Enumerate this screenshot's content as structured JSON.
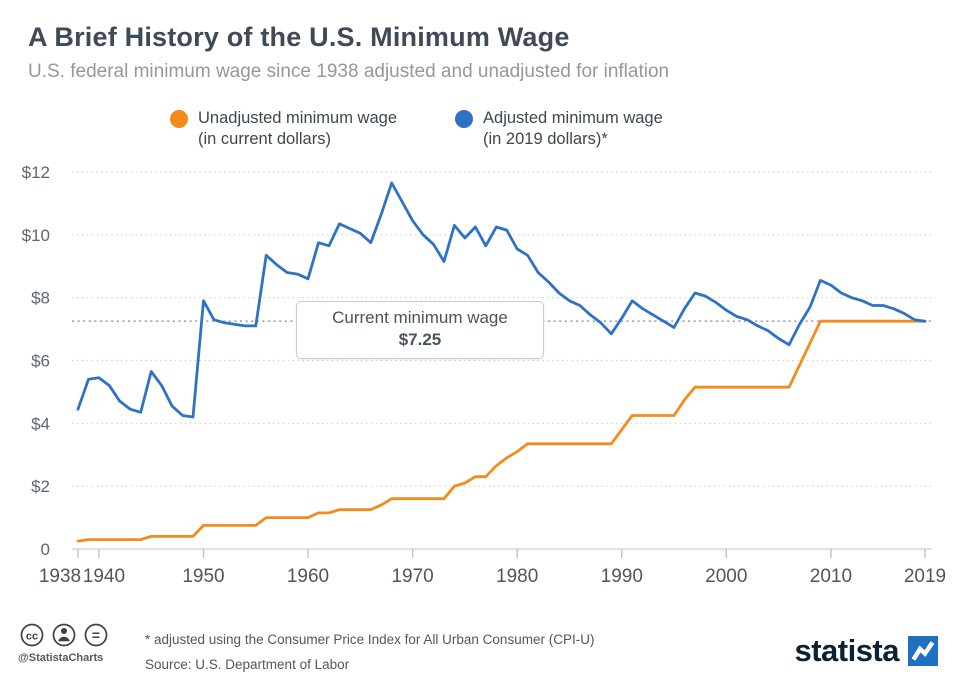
{
  "header": {
    "title": "A Brief History of the U.S. Minimum Wage",
    "subtitle": "U.S. federal minimum wage since 1938 adjusted and unadjusted for inflation"
  },
  "legend": [
    {
      "line1": "Unadjusted minimum wage",
      "line2": "(in current dollars)",
      "color": "#f28c1c"
    },
    {
      "line1": "Adjusted minimum wage",
      "line2": "(in 2019 dollars)*",
      "color": "#2e72c6"
    }
  ],
  "annotation": {
    "line1": "Current minimum wage",
    "line2": "$7.25",
    "value": 7.25
  },
  "chart_data": {
    "type": "line",
    "title": "A Brief History of the U.S. Minimum Wage",
    "xlabel": "",
    "ylabel": "",
    "ylim": [
      0,
      12
    ],
    "grid": "horizontal-dotted",
    "legend_position": "top",
    "reference_line": {
      "value": 7.25,
      "style": "dotted",
      "color": "#9aa1a7"
    },
    "yticks": [
      {
        "v": 0,
        "label": "0"
      },
      {
        "v": 2,
        "label": "$2"
      },
      {
        "v": 4,
        "label": "$4"
      },
      {
        "v": 6,
        "label": "$6"
      },
      {
        "v": 8,
        "label": "$8"
      },
      {
        "v": 10,
        "label": "$10"
      },
      {
        "v": 12,
        "label": "$12"
      }
    ],
    "xticks": [
      1938,
      1940,
      1950,
      1960,
      1970,
      1980,
      1990,
      2000,
      2010,
      2019
    ],
    "x": [
      1938,
      1939,
      1940,
      1941,
      1942,
      1943,
      1944,
      1945,
      1946,
      1947,
      1948,
      1949,
      1950,
      1951,
      1952,
      1953,
      1954,
      1955,
      1956,
      1957,
      1958,
      1959,
      1960,
      1961,
      1962,
      1963,
      1964,
      1965,
      1966,
      1967,
      1968,
      1969,
      1970,
      1971,
      1972,
      1973,
      1974,
      1975,
      1976,
      1977,
      1978,
      1979,
      1980,
      1981,
      1982,
      1983,
      1984,
      1985,
      1986,
      1987,
      1988,
      1989,
      1990,
      1991,
      1992,
      1993,
      1994,
      1995,
      1996,
      1997,
      1998,
      1999,
      2000,
      2001,
      2002,
      2003,
      2004,
      2005,
      2006,
      2007,
      2008,
      2009,
      2010,
      2011,
      2012,
      2013,
      2014,
      2015,
      2016,
      2017,
      2018,
      2019
    ],
    "series": [
      {
        "name": "Unadjusted minimum wage (in current dollars)",
        "color": "#f28c1c",
        "values": [
          0.25,
          0.3,
          0.3,
          0.3,
          0.3,
          0.3,
          0.3,
          0.4,
          0.4,
          0.4,
          0.4,
          0.4,
          0.75,
          0.75,
          0.75,
          0.75,
          0.75,
          0.75,
          1.0,
          1.0,
          1.0,
          1.0,
          1.0,
          1.15,
          1.15,
          1.25,
          1.25,
          1.25,
          1.25,
          1.4,
          1.6,
          1.6,
          1.6,
          1.6,
          1.6,
          1.6,
          2.0,
          2.1,
          2.3,
          2.3,
          2.65,
          2.9,
          3.1,
          3.35,
          3.35,
          3.35,
          3.35,
          3.35,
          3.35,
          3.35,
          3.35,
          3.35,
          3.8,
          4.25,
          4.25,
          4.25,
          4.25,
          4.25,
          4.75,
          5.15,
          5.15,
          5.15,
          5.15,
          5.15,
          5.15,
          5.15,
          5.15,
          5.15,
          5.15,
          5.85,
          6.55,
          7.25,
          7.25,
          7.25,
          7.25,
          7.25,
          7.25,
          7.25,
          7.25,
          7.25,
          7.25,
          7.25
        ]
      },
      {
        "name": "Adjusted minimum wage (in 2019 dollars)",
        "color": "#2e72c6",
        "values": [
          4.45,
          5.4,
          5.45,
          5.2,
          4.7,
          4.45,
          4.35,
          5.65,
          5.2,
          4.55,
          4.25,
          4.2,
          7.9,
          7.3,
          7.2,
          7.15,
          7.1,
          7.1,
          9.35,
          9.05,
          8.8,
          8.75,
          8.6,
          9.75,
          9.65,
          10.35,
          10.2,
          10.05,
          9.75,
          10.65,
          11.65,
          11.05,
          10.45,
          10.0,
          9.7,
          9.15,
          10.3,
          9.9,
          10.25,
          9.65,
          10.25,
          10.15,
          9.55,
          9.35,
          8.8,
          8.5,
          8.15,
          7.9,
          7.75,
          7.45,
          7.2,
          6.85,
          7.35,
          7.9,
          7.65,
          7.45,
          7.25,
          7.05,
          7.65,
          8.15,
          8.05,
          7.85,
          7.6,
          7.4,
          7.3,
          7.1,
          6.95,
          6.7,
          6.5,
          7.15,
          7.7,
          8.55,
          8.4,
          8.15,
          8.0,
          7.9,
          7.75,
          7.75,
          7.65,
          7.5,
          7.3,
          7.25
        ]
      }
    ]
  },
  "footer": {
    "handle": "@StatistaCharts",
    "footnote": "* adjusted using the Consumer Price Index for All Urban Consumer (CPI-U)",
    "source": "Source: U.S. Department of Labor",
    "brand": "statista",
    "brand_color": "#0c2133",
    "brand_square_color": "#1f70c1"
  }
}
